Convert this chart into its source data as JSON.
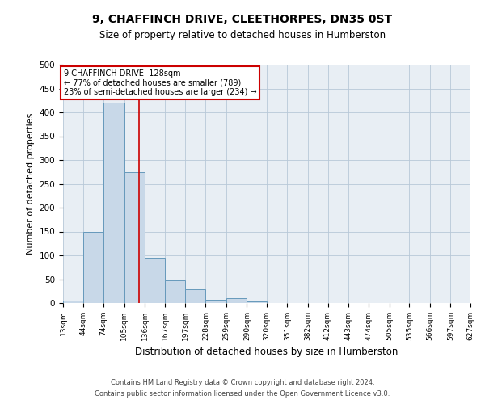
{
  "title": "9, CHAFFINCH DRIVE, CLEETHORPES, DN35 0ST",
  "subtitle": "Size of property relative to detached houses in Humberston",
  "xlabel": "Distribution of detached houses by size in Humberston",
  "ylabel": "Number of detached properties",
  "footer1": "Contains HM Land Registry data © Crown copyright and database right 2024.",
  "footer2": "Contains public sector information licensed under the Open Government Licence v3.0.",
  "annotation_line1": "9 CHAFFINCH DRIVE: 128sqm",
  "annotation_line2": "← 77% of detached houses are smaller (789)",
  "annotation_line3": "23% of semi-detached houses are larger (234) →",
  "property_size": 128,
  "bin_edges": [
    13,
    44,
    74,
    105,
    136,
    167,
    197,
    228,
    259,
    290,
    320,
    351,
    382,
    412,
    443,
    474,
    505,
    535,
    566,
    597,
    627
  ],
  "bar_values": [
    5,
    150,
    420,
    275,
    95,
    48,
    28,
    7,
    10,
    3,
    0,
    0,
    0,
    0,
    0,
    0,
    0,
    0,
    0,
    0
  ],
  "bar_color": "#c8d8e8",
  "bar_edge_color": "#6699bb",
  "vline_color": "#cc0000",
  "grid_color": "#b8c8d8",
  "background_color": "#e8eef4",
  "ylim": [
    0,
    500
  ],
  "yticks": [
    0,
    50,
    100,
    150,
    200,
    250,
    300,
    350,
    400,
    450,
    500
  ],
  "tick_labels": [
    "13sqm",
    "44sqm",
    "74sqm",
    "105sqm",
    "136sqm",
    "167sqm",
    "197sqm",
    "228sqm",
    "259sqm",
    "290sqm",
    "320sqm",
    "351sqm",
    "382sqm",
    "412sqm",
    "443sqm",
    "474sqm",
    "505sqm",
    "535sqm",
    "566sqm",
    "597sqm",
    "627sqm"
  ],
  "annotation_box_color": "#ffffff",
  "annotation_box_edge": "#cc0000",
  "title_fontsize": 10,
  "subtitle_fontsize": 8.5,
  "ylabel_fontsize": 8,
  "xlabel_fontsize": 8.5
}
